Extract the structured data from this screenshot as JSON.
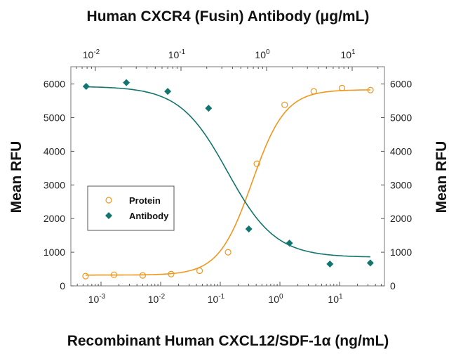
{
  "chart_data": {
    "type": "scatter",
    "title": "Human CXCR4 (Fusin) Antibody (μg/mL)",
    "xlabel": "Recombinant Human CXCL12/SDF-1α (ng/mL)",
    "ylabel": "Mean RFU",
    "ylabel_right": "Mean RFU",
    "x_scale": "log",
    "xlim_bottom": [
      0.0004,
      50
    ],
    "xlim_top": [
      0.005,
      25
    ],
    "ylim": [
      0,
      6500
    ],
    "y_ticks": [
      0,
      1000,
      2000,
      3000,
      4000,
      5000,
      6000
    ],
    "x_ticks_bottom": [
      {
        "base": "10",
        "exp": "-3"
      },
      {
        "base": "10",
        "exp": "-2"
      },
      {
        "base": "10",
        "exp": "-1"
      },
      {
        "base": "10",
        "exp": "0"
      },
      {
        "base": "10",
        "exp": "1"
      }
    ],
    "x_ticks_top": [
      {
        "base": "10",
        "exp": "-2"
      },
      {
        "base": "10",
        "exp": "-1"
      },
      {
        "base": "10",
        "exp": "0"
      },
      {
        "base": "10",
        "exp": "1"
      }
    ],
    "legend_position": "left-middle",
    "grid": false,
    "series": [
      {
        "name": "Protein",
        "axis": "bottom",
        "marker": "open-circle",
        "color": "#f0961e",
        "x": [
          0.00055,
          0.00165,
          0.005,
          0.015,
          0.045,
          0.135,
          0.41,
          1.2,
          3.7,
          11,
          33
        ],
        "y": [
          290,
          330,
          310,
          350,
          450,
          1000,
          3630,
          5380,
          5780,
          5880,
          5820
        ],
        "fit": {
          "bottom": 320,
          "top": 5830,
          "ec50": 0.34,
          "hill": 1.55
        }
      },
      {
        "name": "Antibody",
        "axis": "top",
        "marker": "filled-diamond",
        "color": "#12756e",
        "x": [
          0.0078,
          0.023,
          0.07,
          0.21,
          0.62,
          1.85,
          5.5,
          16.3
        ],
        "y": [
          5930,
          6040,
          5780,
          5280,
          1690,
          1270,
          650,
          680
        ],
        "fit": {
          "bottom": 850,
          "top": 5930,
          "ec50": 0.35,
          "hill": 1.55
        }
      }
    ]
  }
}
